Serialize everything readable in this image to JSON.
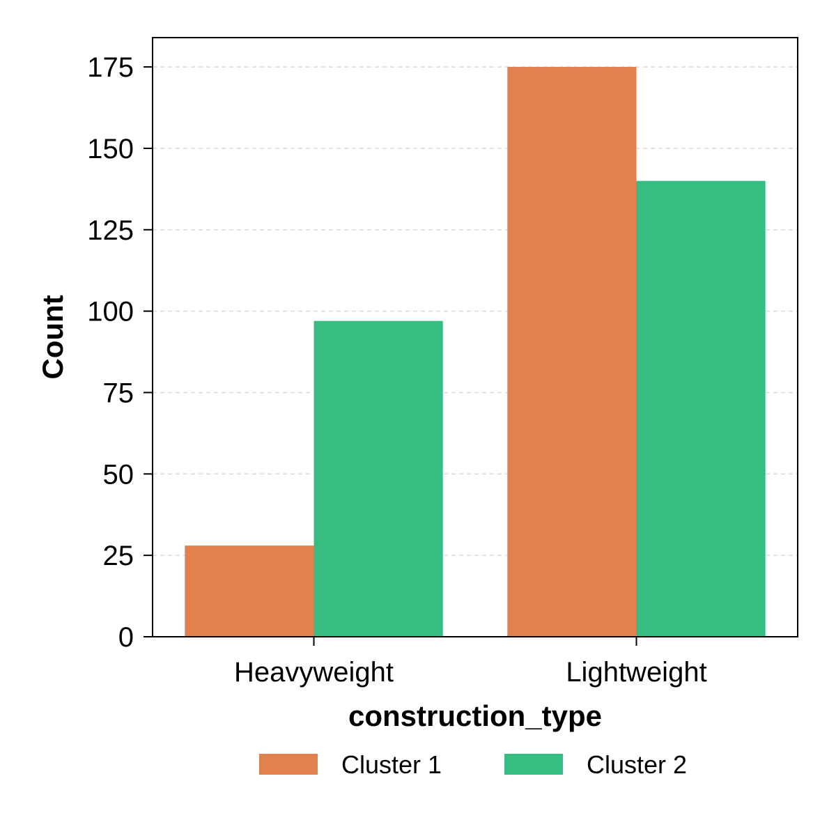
{
  "chart_data": {
    "type": "bar",
    "title": "",
    "xlabel": "construction_type",
    "ylabel": "Count",
    "categories": [
      "Heavyweight",
      "Lightweight"
    ],
    "series": [
      {
        "name": "Cluster 1",
        "values": [
          28,
          175
        ],
        "color": "#E2804F"
      },
      {
        "name": "Cluster 2",
        "values": [
          97,
          140
        ],
        "color": "#37BC82"
      }
    ],
    "ylim": [
      0,
      184
    ],
    "yticks": [
      0,
      25,
      50,
      75,
      100,
      125,
      150,
      175
    ],
    "grid": "horizontal-dashed",
    "legend_position": "bottom-center"
  }
}
